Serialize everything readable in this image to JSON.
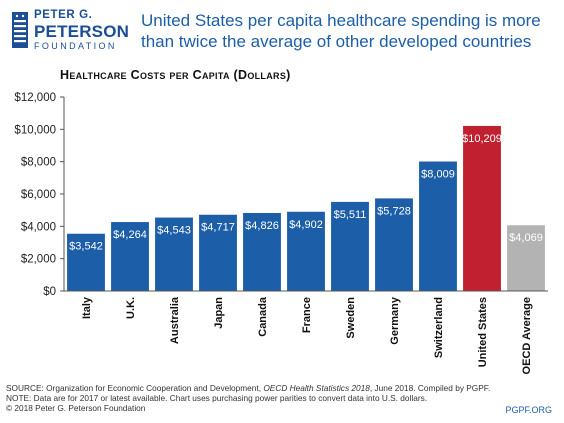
{
  "logo": {
    "line1": "PETER G.",
    "line2": "PETERSON",
    "line3": "FOUNDATION"
  },
  "headline": "United States per capita healthcare spending is more than twice the average of other developed countries",
  "chart_data": {
    "type": "bar",
    "title": "Healthcare Costs per Capita (Dollars)",
    "categories": [
      "Italy",
      "U.K.",
      "Australia",
      "Japan",
      "Canada",
      "France",
      "Sweden",
      "Germany",
      "Switzerland",
      "United States",
      "OECD Average"
    ],
    "values": [
      3542,
      4264,
      4543,
      4717,
      4826,
      4902,
      5511,
      5728,
      8009,
      10209,
      4069
    ],
    "value_labels": [
      "$3,542",
      "$4,264",
      "$4,543",
      "$4,717",
      "$4,826",
      "$4,902",
      "$5,511",
      "$5,728",
      "$8,009",
      "$10,209",
      "$4,069"
    ],
    "bar_colors": [
      "#1c5ea8",
      "#1c5ea8",
      "#1c5ea8",
      "#1c5ea8",
      "#1c5ea8",
      "#1c5ea8",
      "#1c5ea8",
      "#1c5ea8",
      "#1c5ea8",
      "#c0202f",
      "#b3b3b3"
    ],
    "ylim": [
      0,
      12000
    ],
    "yticks": [
      0,
      2000,
      4000,
      6000,
      8000,
      10000,
      12000
    ],
    "ytick_labels": [
      "$0",
      "$2,000",
      "$4,000",
      "$6,000",
      "$8,000",
      "$10,000",
      "$12,000"
    ],
    "grid": false,
    "legend": "none"
  },
  "footer": {
    "source_pre": "SOURCE: Organization for Economic Cooperation and Development, ",
    "source_italic": "OECD Health Statistics 2018",
    "source_post": ", June 2018. Compiled by PGPF.",
    "note": "NOTE: Data are for 2017 or latest available. Chart uses purchasing power parities to convert data into U.S. dollars.",
    "copyright": "© 2018 Peter G. Peterson Foundation",
    "site": "PGPF.ORG"
  },
  "colors": {
    "brand_blue": "#1c5ea8",
    "us_red": "#c0202f",
    "oecd_gray": "#b3b3b3"
  }
}
